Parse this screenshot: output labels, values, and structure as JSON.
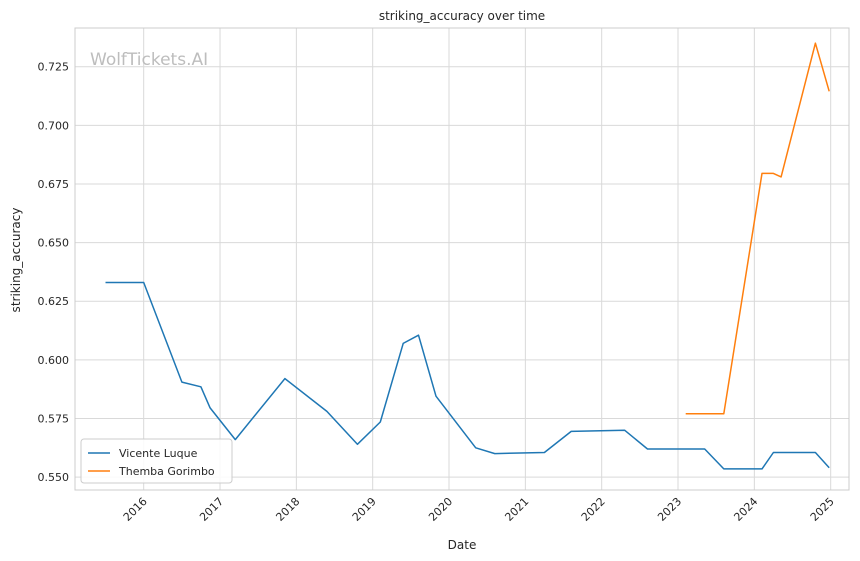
{
  "chart_data": {
    "type": "line",
    "title": "striking_accuracy over time",
    "xlabel": "Date",
    "ylabel": "striking_accuracy",
    "watermark": "WolfTickets.AI",
    "x_ticks": [
      "2016",
      "2017",
      "2018",
      "2019",
      "2020",
      "2021",
      "2022",
      "2023",
      "2024",
      "2025"
    ],
    "y_ticks": [
      "0.550",
      "0.575",
      "0.600",
      "0.625",
      "0.650",
      "0.675",
      "0.700",
      "0.725"
    ],
    "xlim": [
      2015.1,
      2025.24
    ],
    "ylim": [
      0.5445,
      0.7415
    ],
    "grid": true,
    "legend_position": "lower-left",
    "series": [
      {
        "name": "Vicente Luque",
        "color": "#1f77b4",
        "x": [
          2015.5,
          2016.0,
          2016.5,
          2016.75,
          2016.87,
          2017.2,
          2017.85,
          2018.4,
          2018.8,
          2019.1,
          2019.4,
          2019.6,
          2019.83,
          2020.35,
          2020.6,
          2021.25,
          2021.6,
          2022.3,
          2022.6,
          2023.35,
          2023.6,
          2024.1,
          2024.25,
          2024.8,
          2024.98
        ],
        "values": [
          0.633,
          0.633,
          0.5905,
          0.5885,
          0.5795,
          0.566,
          0.592,
          0.578,
          0.564,
          0.5735,
          0.607,
          0.6105,
          0.5845,
          0.5625,
          0.56,
          0.5605,
          0.5695,
          0.57,
          0.562,
          0.562,
          0.5535,
          0.5535,
          0.5605,
          0.5605,
          0.554
        ]
      },
      {
        "name": "Themba Gorimbo",
        "color": "#ff7f0e",
        "x": [
          2023.1,
          2023.6,
          2024.1,
          2024.25,
          2024.35,
          2024.8,
          2024.98
        ],
        "values": [
          0.577,
          0.577,
          0.6795,
          0.6795,
          0.678,
          0.735,
          0.7145
        ]
      }
    ]
  }
}
